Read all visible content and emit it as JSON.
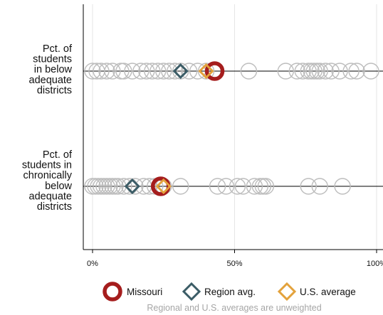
{
  "chart_data": {
    "type": "scatter",
    "orientation": "horizontal dot plot",
    "xlim": [
      0,
      100
    ],
    "x_ticks": [
      {
        "value": 0,
        "label": "0%"
      },
      {
        "value": 50,
        "label": "50%"
      },
      {
        "value": 100,
        "label": "100%"
      }
    ],
    "grid": "vertical gridlines at ticks",
    "rows": [
      {
        "label_lines": [
          "Pct. of",
          "students",
          "in below",
          "adequate",
          "districts"
        ],
        "state_values": [
          0,
          1.5,
          3,
          5,
          7,
          10,
          11,
          14,
          17,
          19,
          21,
          23,
          25,
          27,
          29,
          31,
          34,
          37,
          40,
          55,
          68,
          72,
          74,
          76,
          77,
          78,
          79,
          80,
          82,
          84,
          87,
          91,
          93,
          98
        ],
        "missouri": 43,
        "region_avg": 31,
        "us_avg": 40
      },
      {
        "label_lines": [
          "Pct. of",
          "students in",
          "chronically",
          "below",
          "adequate",
          "districts"
        ],
        "state_values": [
          0,
          1,
          2,
          3,
          4,
          5,
          6,
          7,
          8,
          9,
          11,
          13,
          15,
          18,
          20,
          22,
          25,
          31,
          44,
          47,
          51,
          53,
          57,
          59,
          60,
          61,
          76,
          80,
          88
        ],
        "missouri": 24,
        "region_avg": 14,
        "us_avg": 25
      }
    ],
    "legend": {
      "placement": "bottom",
      "entries": [
        {
          "label": "Missouri",
          "marker": "circle",
          "color": "#a51d1d"
        },
        {
          "label": "Region avg.",
          "marker": "diamond",
          "color": "#3b5c66"
        },
        {
          "label": "U.S. average",
          "marker": "diamond",
          "color": "#e3a23c"
        }
      ]
    },
    "note": "Regional and U.S. averages are unweighted"
  },
  "colors": {
    "state_circle": "#bdbdbd",
    "grid": "#e6e6e6",
    "axis": "#000000",
    "missouri": "#a51d1d",
    "region": "#3b5c66",
    "us": "#e3a23c"
  }
}
